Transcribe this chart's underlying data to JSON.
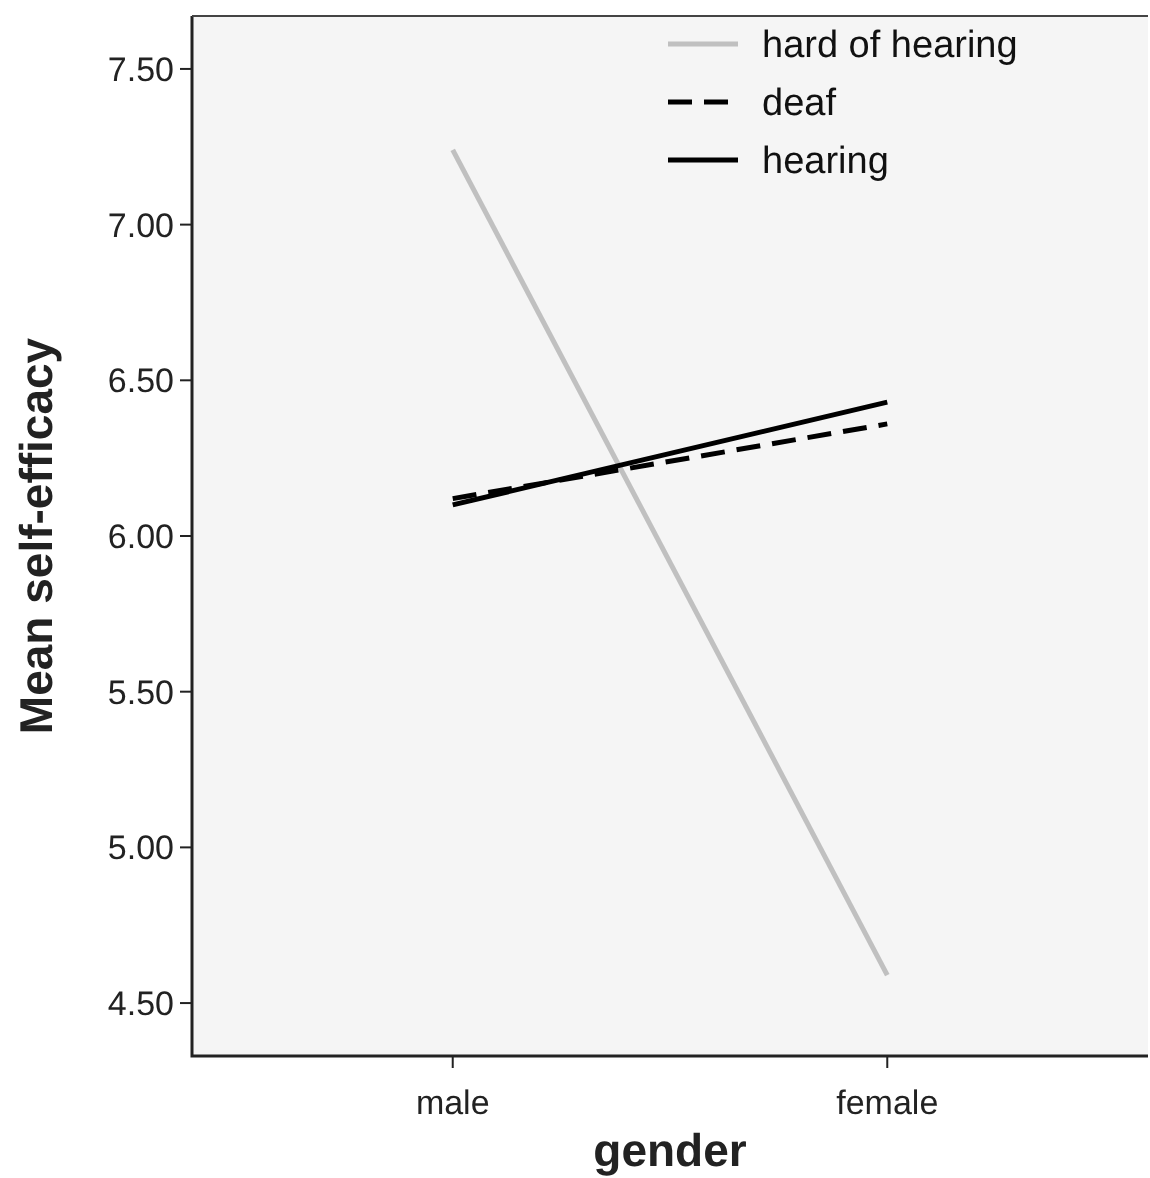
{
  "chart_data": {
    "type": "line",
    "xlabel": "gender",
    "ylabel": "Mean self-efficacy",
    "categories": [
      "male",
      "female"
    ],
    "series": [
      {
        "name": "hard of hearing",
        "color": "#c0c0c0",
        "line_style": "solid",
        "values": [
          7.24,
          4.59
        ]
      },
      {
        "name": "deaf",
        "color": "#000000",
        "line_style": "dashed",
        "values": [
          6.12,
          6.36
        ]
      },
      {
        "name": "hearing",
        "color": "#000000",
        "line_style": "solid",
        "values": [
          6.1,
          6.43
        ]
      }
    ],
    "ylim": [
      4.33,
      7.67
    ],
    "yticks": [
      {
        "value": 4.5,
        "label": "4.50"
      },
      {
        "value": 5,
        "label": "5.00"
      },
      {
        "value": 5.5,
        "label": "5.50"
      },
      {
        "value": 6,
        "label": "6.00"
      },
      {
        "value": 6.5,
        "label": "6.50"
      },
      {
        "value": 7,
        "label": "7.00"
      },
      {
        "value": 7.5,
        "label": "7.50"
      }
    ],
    "grid": false,
    "legend": "top right",
    "marker": "none"
  }
}
